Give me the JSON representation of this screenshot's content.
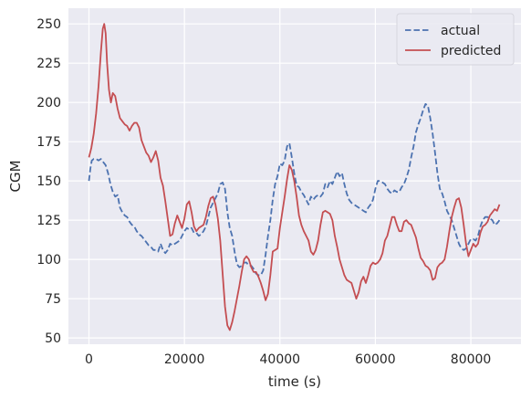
{
  "chart_data": {
    "type": "line",
    "xlabel": "time (s)",
    "ylabel": "CGM",
    "xlim": [
      -4300,
      90500
    ],
    "ylim": [
      46,
      260
    ],
    "xticks": [
      0,
      20000,
      40000,
      60000,
      80000
    ],
    "yticks": [
      50,
      75,
      100,
      125,
      150,
      175,
      200,
      225,
      250
    ],
    "grid": true,
    "legend_position": "top-right",
    "series": [
      {
        "name": "actual",
        "color": "#4c72b0",
        "style": "dashed",
        "x": [
          0,
          300,
          600,
          1000,
          1500,
          2000,
          2500,
          3000,
          3500,
          4000,
          4500,
          5000,
          5500,
          6000,
          6500,
          7000,
          7500,
          8000,
          8500,
          9000,
          9500,
          10000,
          10500,
          11000,
          11500,
          12000,
          12500,
          13000,
          13500,
          14000,
          14500,
          15000,
          15500,
          16000,
          16500,
          17000,
          17500,
          18000,
          18500,
          19000,
          19500,
          20000,
          20500,
          21000,
          21500,
          22000,
          22500,
          23000,
          23500,
          24000,
          24500,
          25000,
          25500,
          26000,
          26500,
          27000,
          27500,
          28000,
          28500,
          29000,
          29500,
          30000,
          30500,
          31000,
          31500,
          32000,
          32500,
          33000,
          33500,
          34000,
          34500,
          35000,
          35500,
          36000,
          36500,
          37000,
          37500,
          38000,
          38500,
          39000,
          39500,
          40000,
          40500,
          41000,
          41500,
          42000,
          42500,
          43000,
          43500,
          44000,
          44500,
          45000,
          45500,
          46000,
          46500,
          47000,
          47500,
          48000,
          48500,
          49000,
          49500,
          50000,
          50500,
          51000,
          51500,
          52000,
          52500,
          53000,
          53500,
          54000,
          54500,
          55000,
          55500,
          56000,
          56500,
          57000,
          57500,
          58000,
          58500,
          59000,
          59500,
          60000,
          60500,
          61000,
          61500,
          62000,
          62500,
          63000,
          63500,
          64000,
          64500,
          65000,
          65500,
          66000,
          66500,
          67000,
          67500,
          68000,
          68500,
          69000,
          69500,
          70000,
          70500,
          71000,
          71500,
          72000,
          72500,
          73000,
          73500,
          74000,
          74500,
          75000,
          75500,
          76000,
          76500,
          77000,
          77500,
          78000,
          78500,
          79000,
          79500,
          80000,
          80500,
          81000,
          81500,
          82000,
          82500,
          83000,
          83500,
          84000,
          84500,
          85000,
          85500,
          86000
        ],
        "y": [
          150,
          158,
          163,
          164,
          164,
          163,
          164,
          162,
          160,
          155,
          148,
          143,
          140,
          141,
          133,
          130,
          128,
          127,
          124,
          122,
          121,
          118,
          116,
          115,
          113,
          111,
          109,
          108,
          106,
          106,
          105,
          110,
          106,
          104,
          106,
          110,
          109,
          110,
          111,
          112,
          115,
          118,
          120,
          119,
          120,
          117,
          117,
          115,
          116,
          118,
          121,
          127,
          133,
          136,
          139,
          142,
          148,
          149,
          145,
          130,
          120,
          115,
          105,
          97,
          95,
          96,
          98,
          98,
          96,
          96,
          94,
          91,
          90,
          90,
          93,
          103,
          115,
          125,
          138,
          148,
          153,
          161,
          160,
          163,
          172,
          174,
          165,
          155,
          147,
          146,
          143,
          141,
          138,
          135,
          140,
          138,
          140,
          141,
          140,
          142,
          148,
          146,
          150,
          148,
          152,
          156,
          153,
          155,
          148,
          142,
          138,
          136,
          135,
          134,
          133,
          132,
          131,
          130,
          133,
          135,
          138,
          145,
          150,
          150,
          149,
          148,
          145,
          143,
          142,
          144,
          143,
          143,
          146,
          148,
          152,
          157,
          165,
          172,
          181,
          186,
          190,
          195,
          199,
          198,
          190,
          180,
          168,
          155,
          145,
          142,
          137,
          131,
          128,
          125,
          120,
          115,
          110,
          107,
          106,
          107,
          110,
          113,
          113,
          112,
          115,
          121,
          125,
          127,
          127,
          126,
          125,
          122,
          123,
          125
        ]
      },
      {
        "name": "predicted",
        "color": "#c44e52",
        "style": "solid",
        "x": [
          0,
          500,
          1000,
          1500,
          2000,
          2500,
          2900,
          3200,
          3500,
          3800,
          4200,
          4600,
          5000,
          5500,
          6000,
          6500,
          7000,
          7500,
          8000,
          8500,
          9000,
          9500,
          10000,
          10500,
          11000,
          11500,
          12000,
          12500,
          13000,
          13500,
          14000,
          14500,
          15000,
          15500,
          16000,
          16500,
          17000,
          17500,
          18000,
          18500,
          19000,
          19500,
          20000,
          20500,
          21000,
          21500,
          22000,
          22500,
          23000,
          23500,
          24000,
          24500,
          25000,
          25500,
          26000,
          26500,
          27000,
          27500,
          28000,
          28500,
          29000,
          29500,
          30000,
          30500,
          31000,
          31500,
          32000,
          32500,
          33000,
          33500,
          34000,
          34500,
          35000,
          35500,
          36000,
          36500,
          37000,
          37500,
          38000,
          38500,
          39000,
          39500,
          40000,
          40500,
          41000,
          41500,
          42000,
          42500,
          43000,
          43500,
          44000,
          44500,
          45000,
          45500,
          46000,
          46500,
          47000,
          47500,
          48000,
          48500,
          49000,
          49500,
          50000,
          50500,
          51000,
          51500,
          52000,
          52500,
          53000,
          53500,
          54000,
          54500,
          55000,
          55500,
          56000,
          56500,
          57000,
          57500,
          58000,
          58500,
          59000,
          59500,
          60000,
          60500,
          61000,
          61500,
          62000,
          62500,
          63000,
          63500,
          64000,
          64500,
          65000,
          65500,
          66000,
          66500,
          67000,
          67500,
          68000,
          68500,
          69000,
          69500,
          70000,
          70500,
          71000,
          71500,
          72000,
          72500,
          73000,
          73500,
          74000,
          74500,
          75000,
          75500,
          76000,
          76500,
          77000,
          77500,
          78000,
          78500,
          79000,
          79500,
          80000,
          80500,
          81000,
          81500,
          82000,
          82500,
          83000,
          83500,
          84000,
          84500,
          85000,
          85500,
          86000
        ],
        "y": [
          165,
          171,
          180,
          193,
          210,
          232,
          247,
          250,
          244,
          225,
          208,
          200,
          206,
          204,
          196,
          190,
          188,
          186,
          185,
          182,
          185,
          187,
          187,
          184,
          176,
          172,
          168,
          166,
          162,
          165,
          169,
          163,
          152,
          147,
          137,
          126,
          115,
          116,
          123,
          128,
          124,
          120,
          126,
          135,
          137,
          130,
          121,
          118,
          120,
          121,
          122,
          127,
          134,
          139,
          140,
          135,
          126,
          112,
          91,
          70,
          58,
          55,
          60,
          67,
          75,
          83,
          92,
          100,
          102,
          100,
          95,
          92,
          92,
          89,
          85,
          80,
          74,
          78,
          90,
          105,
          106,
          107,
          120,
          130,
          140,
          151,
          160,
          157,
          150,
          140,
          128,
          122,
          118,
          115,
          112,
          105,
          103,
          106,
          112,
          122,
          130,
          131,
          130,
          129,
          125,
          115,
          108,
          100,
          95,
          90,
          87,
          86,
          85,
          80,
          75,
          79,
          86,
          89,
          85,
          90,
          96,
          98,
          97,
          98,
          100,
          104,
          112,
          115,
          121,
          127,
          127,
          122,
          118,
          118,
          124,
          125,
          123,
          122,
          118,
          114,
          107,
          101,
          99,
          96,
          95,
          93,
          87,
          88,
          95,
          97,
          98,
          100,
          108,
          118,
          127,
          133,
          138,
          139,
          133,
          122,
          110,
          102,
          106,
          110,
          108,
          110,
          117,
          121,
          122,
          124,
          128,
          130,
          132,
          131,
          135
        ]
      }
    ]
  }
}
